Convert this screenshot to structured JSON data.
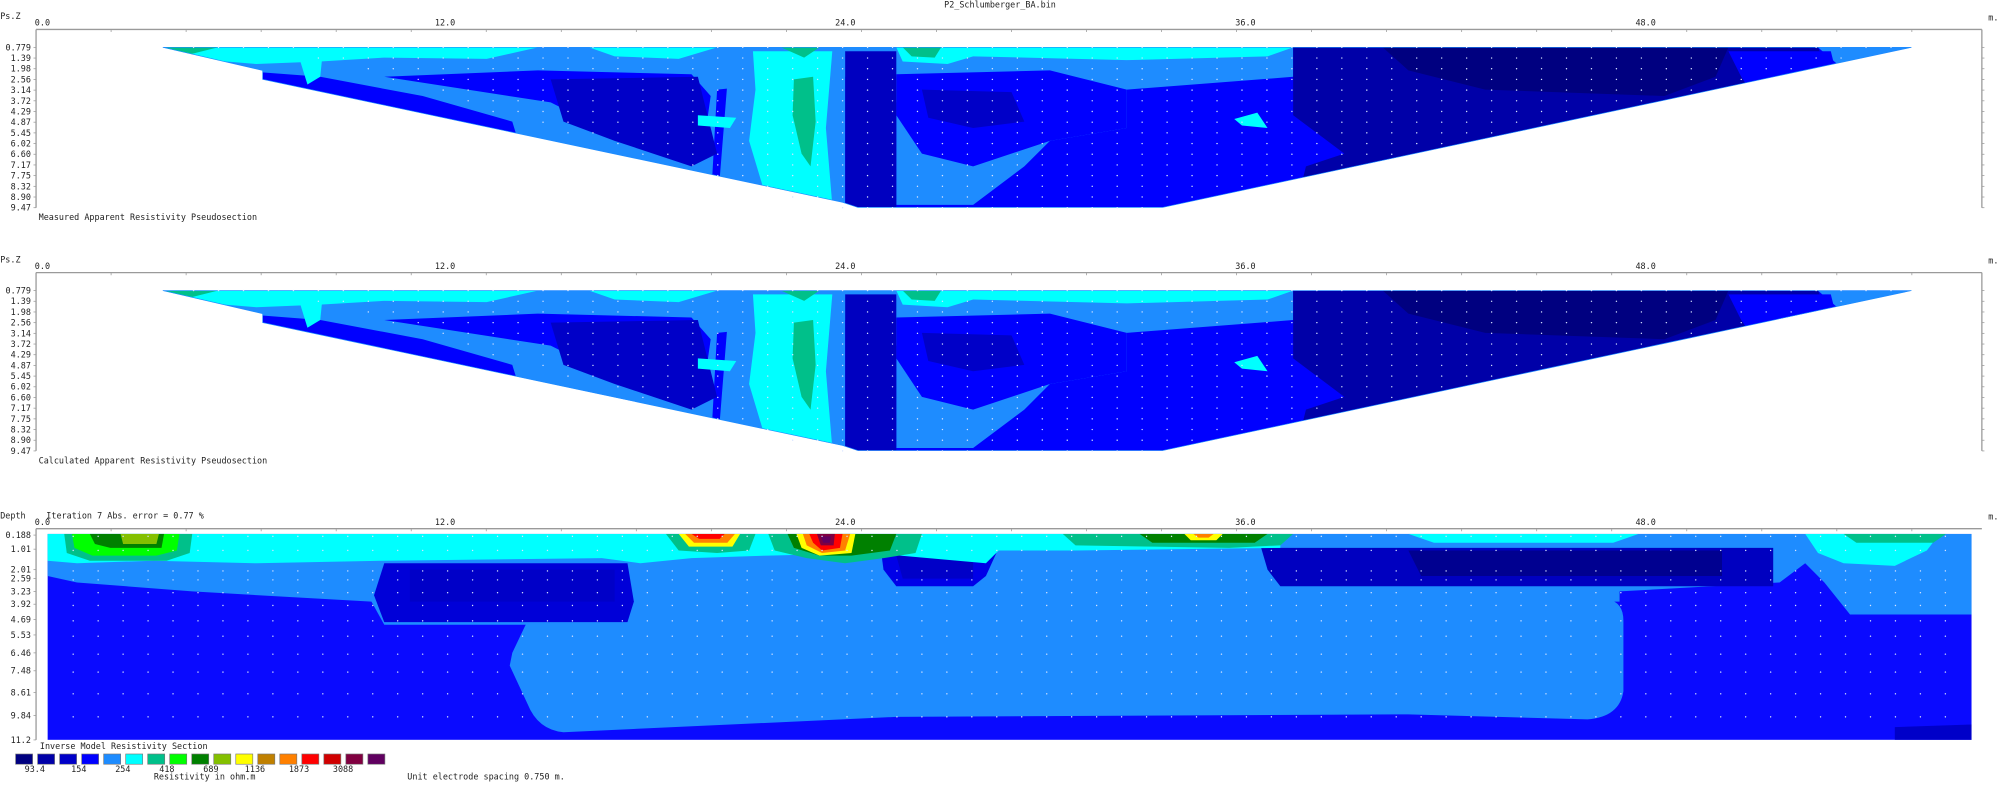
{
  "file_title": "P2_Schlumberger_BA.bin",
  "x_axis": {
    "unit": "m.",
    "tick_labels": [
      "0.0",
      "12.0",
      "24.0",
      "36.0",
      "48.0"
    ]
  },
  "pseudo_axis_label": "Ps.Z",
  "pseudo_depths": [
    "0.779",
    "1.39",
    "1.98",
    "2.56",
    "3.14",
    "3.72",
    "4.29",
    "4.87",
    "5.45",
    "6.02",
    "6.60",
    "7.17",
    "7.75",
    "8.32",
    "8.90",
    "9.47"
  ],
  "measured": {
    "caption": "Measured Apparent Resistivity Pseudosection"
  },
  "calculated": {
    "caption": "Calculated Apparent Resistivity Pseudosection"
  },
  "inverse": {
    "depth_label": "Depth",
    "iteration_text": "Iteration 7 Abs. error = 0.77 %",
    "depths": [
      "0.188",
      "1.01",
      "2.01",
      "2.59",
      "3.23",
      "3.92",
      "4.69",
      "5.53",
      "6.46",
      "7.48",
      "8.61",
      "9.84",
      "11.2"
    ],
    "caption": "Inverse Model Resistivity Section"
  },
  "legend": {
    "colors": [
      "#000080",
      "#0000a8",
      "#0000c8",
      "#0000ff",
      "#1e8cff",
      "#00ffff",
      "#00c08a",
      "#00ff00",
      "#008000",
      "#84c000",
      "#ffff00",
      "#c08000",
      "#ff8000",
      "#ff0000",
      "#d00000",
      "#800040",
      "#600060"
    ],
    "values": [
      "93.4",
      "154",
      "254",
      "418",
      "689",
      "1136",
      "1873",
      "3088"
    ],
    "unit_label": "Resistivity in ohm.m",
    "spacing_note": "Unit electrode spacing 0.750 m."
  }
}
